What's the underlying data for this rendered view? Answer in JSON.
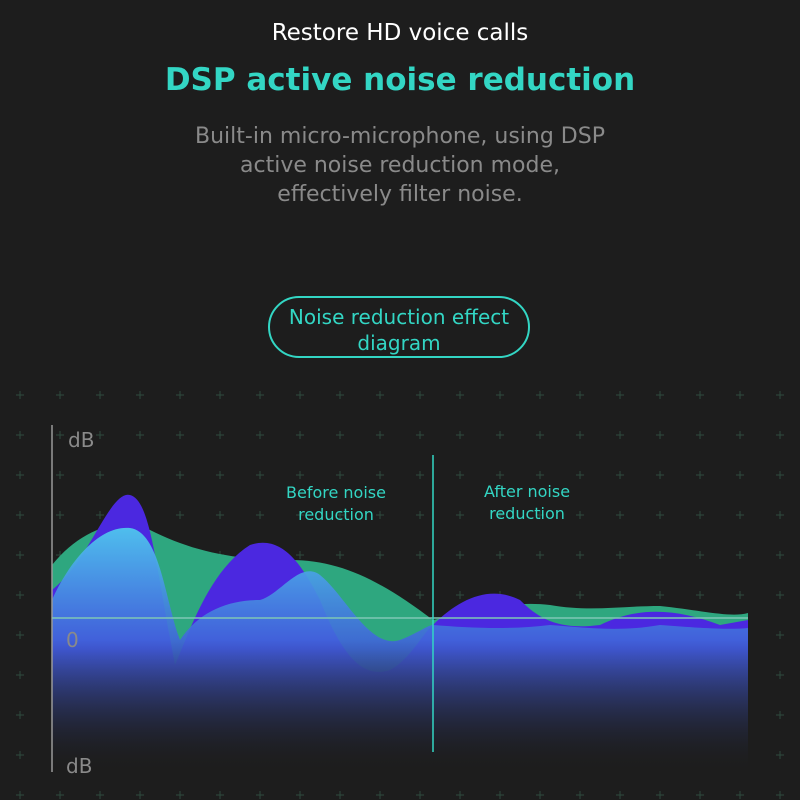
{
  "header": {
    "subtitle": "Restore HD voice calls",
    "title": "DSP active noise reduction",
    "description": [
      "Built-in micro-microphone, using DSP",
      "active noise reduction mode,",
      "effectively filter noise."
    ]
  },
  "badge": {
    "lines": [
      "Noise reduction effect",
      "diagram"
    ]
  },
  "diagram": {
    "top_axis_label": "dB",
    "zero_label": "0",
    "bottom_axis_label": "dB",
    "before_label": [
      "Before noise",
      "reduction"
    ],
    "after_label": [
      "After noise",
      "reduction"
    ]
  }
}
